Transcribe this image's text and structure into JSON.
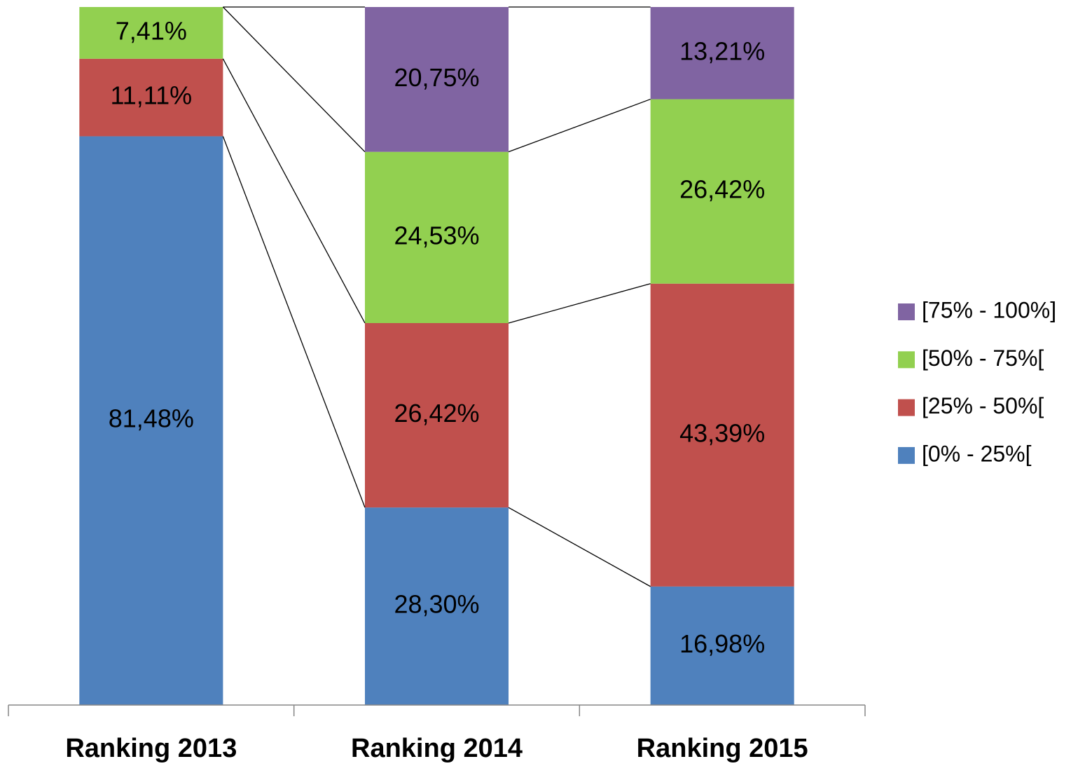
{
  "chart_data": {
    "type": "stacked_bar",
    "categories": [
      "Ranking 2013",
      "Ranking 2014",
      "Ranking 2015"
    ],
    "series": [
      {
        "name": "[0% - 25%[",
        "color": "#4f81bd",
        "values": [
          81.48,
          28.3,
          16.98
        ],
        "value_labels": [
          "81,48%",
          "28,30%",
          "16,98%"
        ]
      },
      {
        "name": "[25% - 50%[",
        "color": "#c0504d",
        "values": [
          11.11,
          26.42,
          43.39
        ],
        "value_labels": [
          "11,11%",
          "26,42%",
          "43,39%"
        ]
      },
      {
        "name": "[50% - 75%[",
        "color": "#92d050",
        "values": [
          7.41,
          24.53,
          26.42
        ],
        "value_labels": [
          "7,41%",
          "24,53%",
          "26,42%"
        ]
      },
      {
        "name": "[75% - 100%]",
        "color": "#8064a2",
        "values": [
          null,
          20.75,
          13.21
        ],
        "value_labels": [
          null,
          "20,75%",
          "13,21%"
        ]
      }
    ],
    "legend": "right"
  }
}
